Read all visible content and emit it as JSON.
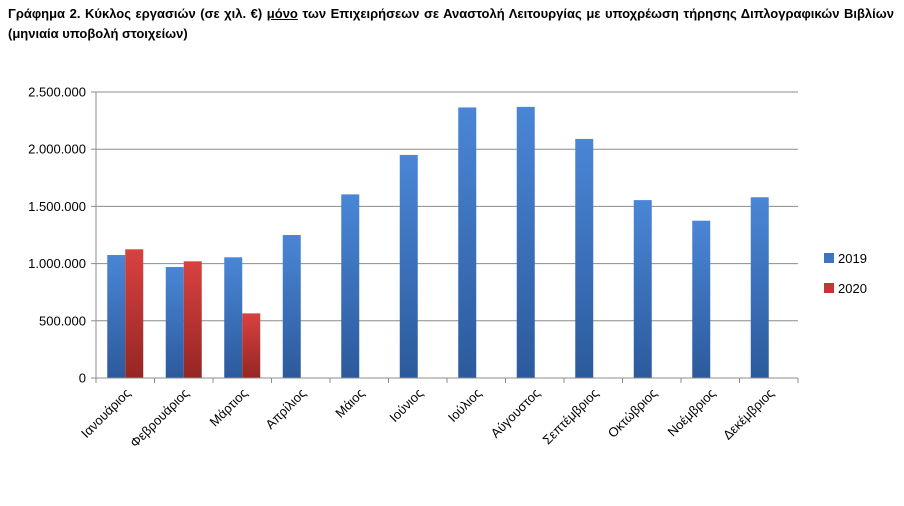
{
  "title": {
    "lead": "Γράφημα 2",
    "sep": ". ",
    "before": "Κύκλος εργασιών (σε χιλ. €) ",
    "emph": "μόνο",
    "after": " των Επιχειρήσεων σε Αναστολή Λειτουργίας με υποχρέωση τήρησης Διπλογραφικών Βιβλίων (μηνιαία υποβολή στοιχείων)"
  },
  "chart_data": {
    "type": "bar",
    "categories": [
      "Ιανουάριος",
      "Φεβρουάριος",
      "Μάρτιος",
      "Απρίλιος",
      "Μάιος",
      "Ιούνιος",
      "Ιούλιος",
      "Αύγουστος",
      "Σεπτέμβριος",
      "Οκτώβριος",
      "Νοέμβριος",
      "Δεκέμβριος"
    ],
    "series": [
      {
        "name": "2019",
        "color": "#3f74c0",
        "values": [
          1075000,
          970000,
          1055000,
          1250000,
          1605000,
          1950000,
          2365000,
          2370000,
          2090000,
          1555000,
          1375000,
          1580000
        ]
      },
      {
        "name": "2020",
        "color": "#c53533",
        "values": [
          1125000,
          1020000,
          565000,
          null,
          null,
          null,
          null,
          null,
          null,
          null,
          null,
          null
        ]
      }
    ],
    "ylim": [
      0,
      2500000
    ],
    "yticks": [
      0,
      500000,
      1000000,
      1500000,
      2000000,
      2500000
    ],
    "ytick_labels": [
      "0",
      "500.000",
      "1.000.000",
      "1.500.000",
      "2.000.000",
      "2.500.000"
    ],
    "grid": true,
    "legend": "right",
    "xlabel": "",
    "ylabel": ""
  }
}
